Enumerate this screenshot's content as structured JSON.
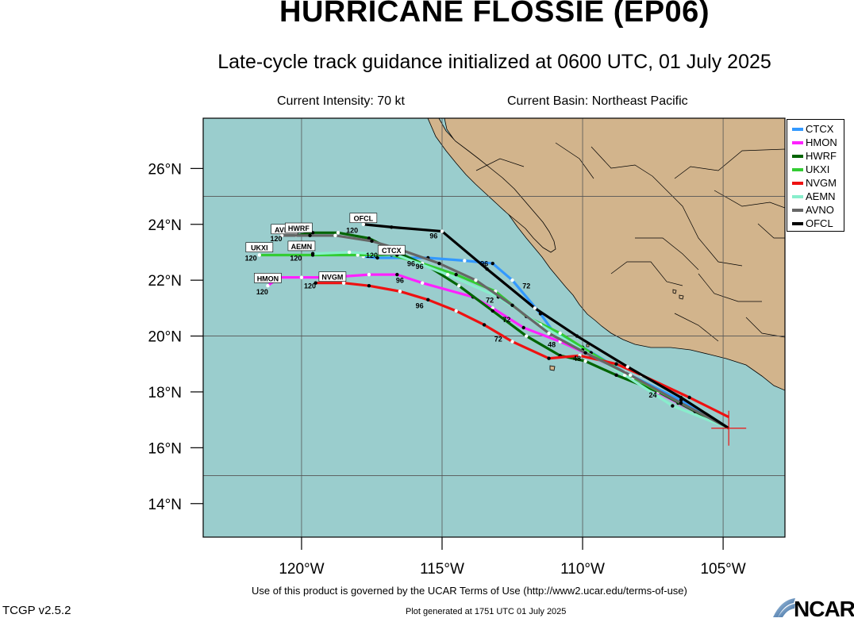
{
  "header": {
    "title": "HURRICANE FLOSSIE (EP06)",
    "subtitle": "Late-cycle track guidance initialized at 0600 UTC, 01 July 2025",
    "current_intensity": "Current Intensity: 70 kt",
    "current_basin": "Current Basin: Northeast Pacific"
  },
  "map": {
    "lon_range": [
      -123.5,
      -102.8
    ],
    "lat_range": [
      12.8,
      27.8
    ],
    "x_ticks": [
      {
        "lon": -120,
        "label": "120°W"
      },
      {
        "lon": -115,
        "label": "115°W"
      },
      {
        "lon": -110,
        "label": "110°W"
      },
      {
        "lon": -105,
        "label": "105°W"
      }
    ],
    "y_ticks": [
      {
        "lat": 26,
        "label": "26°N"
      },
      {
        "lat": 24,
        "label": "24°N"
      },
      {
        "lat": 22,
        "label": "22°N"
      },
      {
        "lat": 20,
        "label": "20°N"
      },
      {
        "lat": 18,
        "label": "18°N"
      },
      {
        "lat": 16,
        "label": "16°N"
      },
      {
        "lat": 14,
        "label": "14°N"
      }
    ],
    "current_position": {
      "lon": -104.8,
      "lat": 16.7
    },
    "colors": {
      "ocean": "#9acdcd",
      "land": "#d2b48c"
    }
  },
  "chart_data": {
    "type": "line",
    "x_axis": "longitude",
    "y_axis": "latitude",
    "series": [
      {
        "name": "CTCX",
        "color": "#3399ff",
        "label_box": "CTCX",
        "points": [
          [
            -104.8,
            16.7
          ],
          [
            -106.5,
            17.7
          ],
          [
            -108.5,
            18.7
          ],
          [
            -110.0,
            19.6
          ],
          [
            -111.0,
            20.1
          ],
          [
            -111.5,
            20.8
          ],
          [
            -112.5,
            22.0
          ],
          [
            -113.2,
            22.6
          ],
          [
            -114.2,
            22.7
          ],
          [
            -115.5,
            22.8
          ],
          [
            -116.3,
            22.8
          ],
          [
            -117.3,
            22.8
          ],
          [
            -117.8,
            22.85
          ]
        ],
        "hour_labels": [
          {
            "t": "96",
            "lon": -113.5,
            "lat": 22.5
          },
          {
            "t": "72",
            "lon": -112.0,
            "lat": 21.7
          },
          {
            "t": "120",
            "lon": -117.5,
            "lat": 22.8
          }
        ]
      },
      {
        "name": "HMON",
        "color": "#ff22ff",
        "label_box": "HMON",
        "points": [
          [
            -104.8,
            16.7
          ],
          [
            -106.6,
            17.6
          ],
          [
            -108.3,
            18.5
          ],
          [
            -109.7,
            19.3
          ],
          [
            -110.8,
            19.8
          ],
          [
            -112.1,
            20.3
          ],
          [
            -113.2,
            21.0
          ],
          [
            -113.9,
            21.4
          ],
          [
            -115.7,
            21.9
          ],
          [
            -116.6,
            22.2
          ],
          [
            -117.6,
            22.2
          ],
          [
            -119.0,
            22.1
          ],
          [
            -120.0,
            22.1
          ],
          [
            -120.8,
            22.1
          ],
          [
            -121.2,
            21.8
          ]
        ],
        "hour_labels": [
          {
            "t": "72",
            "lon": -113.3,
            "lat": 21.2
          },
          {
            "t": "96",
            "lon": -116.5,
            "lat": 21.9
          },
          {
            "t": "120",
            "lon": -121.4,
            "lat": 21.5
          }
        ]
      },
      {
        "name": "HWRF",
        "color": "#006400",
        "label_box": "",
        "points": [
          [
            -104.8,
            16.7
          ],
          [
            -106.0,
            17.3
          ],
          [
            -107.3,
            18.0
          ],
          [
            -108.8,
            18.6
          ],
          [
            -109.9,
            19.1
          ],
          [
            -110.8,
            19.3
          ],
          [
            -112.0,
            20.0
          ],
          [
            -113.2,
            20.9
          ],
          [
            -114.4,
            21.8
          ],
          [
            -115.5,
            22.5
          ],
          [
            -116.6,
            23.0
          ],
          [
            -117.6,
            23.5
          ],
          [
            -118.7,
            23.7
          ],
          [
            -119.6,
            23.7
          ],
          [
            -120.2,
            23.6
          ]
        ],
        "hour_labels": [
          {
            "t": "24",
            "lon": -107.5,
            "lat": 17.8
          },
          {
            "t": "48",
            "lon": -111.1,
            "lat": 19.6
          },
          {
            "t": "96",
            "lon": -116.1,
            "lat": 22.5
          }
        ]
      },
      {
        "name": "UKXI",
        "color": "#33cc33",
        "label_box": "UKXI",
        "points": [
          [
            -104.8,
            16.7
          ],
          [
            -106.5,
            17.6
          ],
          [
            -108.2,
            18.5
          ],
          [
            -109.7,
            19.4
          ],
          [
            -110.8,
            20.1
          ],
          [
            -112.0,
            20.7
          ],
          [
            -113.1,
            21.6
          ],
          [
            -114.5,
            22.2
          ],
          [
            -115.7,
            22.6
          ],
          [
            -116.8,
            22.9
          ],
          [
            -118.0,
            22.9
          ],
          [
            -119.6,
            22.9
          ],
          [
            -121.5,
            22.9
          ]
        ],
        "hour_labels": [
          {
            "t": "72",
            "lon": -112.7,
            "lat": 20.5
          },
          {
            "t": "96",
            "lon": -115.8,
            "lat": 22.4
          },
          {
            "t": "120",
            "lon": -121.8,
            "lat": 22.7
          }
        ]
      },
      {
        "name": "NVGM",
        "color": "#ee1111",
        "label_box": "NVGM",
        "points": [
          [
            -104.8,
            17.1
          ],
          [
            -106.2,
            17.8
          ],
          [
            -107.9,
            18.6
          ],
          [
            -108.8,
            19.0
          ],
          [
            -110.1,
            19.3
          ],
          [
            -111.2,
            19.2
          ],
          [
            -112.5,
            19.8
          ],
          [
            -113.5,
            20.4
          ],
          [
            -114.5,
            20.9
          ],
          [
            -115.5,
            21.3
          ],
          [
            -116.5,
            21.6
          ],
          [
            -117.6,
            21.8
          ],
          [
            -118.5,
            21.9
          ],
          [
            -119.5,
            21.9
          ]
        ],
        "hour_labels": [
          {
            "t": "48",
            "lon": -110.2,
            "lat": 19.1
          },
          {
            "t": "72",
            "lon": -113.0,
            "lat": 19.8
          },
          {
            "t": "96",
            "lon": -115.8,
            "lat": 21.0
          },
          {
            "t": "120",
            "lon": -119.7,
            "lat": 21.7
          }
        ]
      },
      {
        "name": "AEMN",
        "color": "#88eecc",
        "label_box": "AEMN",
        "points": [
          [
            -104.8,
            16.7
          ],
          [
            -106.8,
            17.5
          ],
          [
            -108.5,
            18.6
          ],
          [
            -110.0,
            19.5
          ],
          [
            -111.5,
            20.4
          ],
          [
            -113.0,
            21.4
          ],
          [
            -114.8,
            22.2
          ],
          [
            -116.6,
            22.9
          ],
          [
            -118.3,
            23.0
          ],
          [
            -119.6,
            22.95
          ]
        ],
        "hour_labels": [
          {
            "t": "120",
            "lon": -120.2,
            "lat": 22.7
          }
        ]
      },
      {
        "name": "AVNO",
        "color": "#666666",
        "label_box": "AVNO",
        "points": [
          [
            -104.8,
            16.7
          ],
          [
            -106.5,
            17.6
          ],
          [
            -108.3,
            18.6
          ],
          [
            -109.9,
            19.4
          ],
          [
            -111.2,
            20.1
          ],
          [
            -112.5,
            21.1
          ],
          [
            -113.8,
            22.0
          ],
          [
            -115.1,
            22.6
          ],
          [
            -116.5,
            23.1
          ],
          [
            -117.5,
            23.4
          ],
          [
            -118.8,
            23.6
          ],
          [
            -119.7,
            23.6
          ],
          [
            -120.7,
            23.6
          ]
        ],
        "hour_labels": [
          {
            "t": "120",
            "lon": -120.9,
            "lat": 23.4
          }
        ]
      },
      {
        "name": "OFCL",
        "color": "#000000",
        "label_box": "OFCL",
        "points": [
          [
            -104.8,
            16.7
          ],
          [
            -106.5,
            17.8
          ],
          [
            -108.4,
            18.9
          ],
          [
            -110.2,
            20.0
          ],
          [
            -111.7,
            21.0
          ],
          [
            -113.4,
            22.4
          ],
          [
            -115.0,
            23.75
          ],
          [
            -116.8,
            23.9
          ],
          [
            -117.8,
            24.0
          ]
        ],
        "hour_labels": [
          {
            "t": "96",
            "lon": -115.3,
            "lat": 23.5
          },
          {
            "t": "120",
            "lon": -118.2,
            "lat": 23.7
          }
        ]
      }
    ],
    "label_boxes": [
      {
        "t": "OFCL",
        "lon": -117.8,
        "lat": 24.2
      },
      {
        "t": "AVNO",
        "lon": -120.6,
        "lat": 23.8
      },
      {
        "t": "HWRF",
        "lon": -120.1,
        "lat": 23.85
      },
      {
        "t": "UKXI",
        "lon": -121.5,
        "lat": 23.15
      },
      {
        "t": "AEMN",
        "lon": -120.0,
        "lat": 23.2
      },
      {
        "t": "CTCX",
        "lon": -116.8,
        "lat": 23.05
      },
      {
        "t": "HMON",
        "lon": -121.2,
        "lat": 22.05
      },
      {
        "t": "NVGM",
        "lon": -118.9,
        "lat": 22.1
      }
    ],
    "legend_placement": "top-right"
  },
  "footer": {
    "terms": "Use of this product is governed by the UCAR Terms of Use (http://www2.ucar.edu/terms-of-use)",
    "version": "TCGP v2.5.2",
    "generated": "Plot generated at 1751 UTC   01 July 2025",
    "logo_text": "NCAR"
  }
}
